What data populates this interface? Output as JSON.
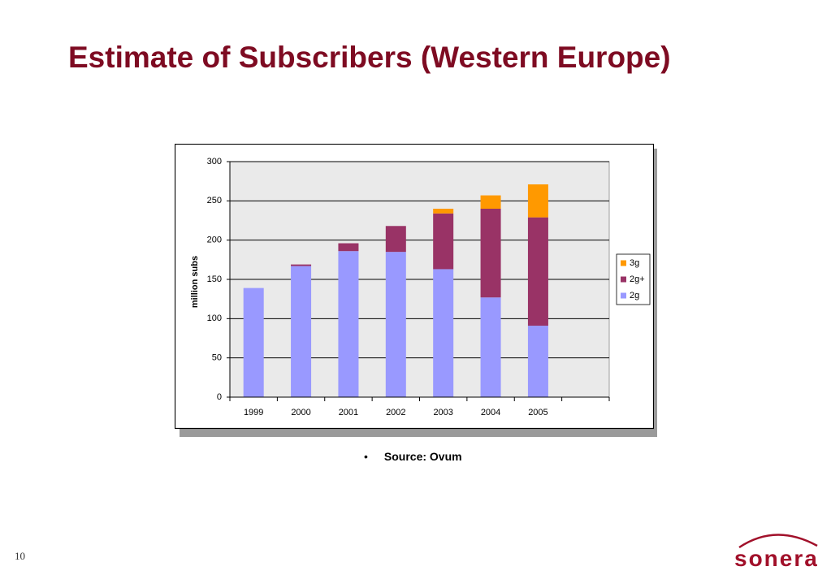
{
  "title": "Estimate of Subscribers (Western Europe)",
  "chart_data": {
    "type": "stacked_bar",
    "ylabel": "million subs",
    "categories": [
      "1999",
      "2000",
      "2001",
      "2002",
      "2003",
      "2004",
      "2005",
      null
    ],
    "series": [
      {
        "name": "2g",
        "color": "#9999ff",
        "values": [
          139,
          167,
          186,
          185,
          163,
          127,
          91,
          null
        ]
      },
      {
        "name": "2g+",
        "color": "#993366",
        "values": [
          0,
          2,
          10,
          33,
          71,
          113,
          138,
          null
        ]
      },
      {
        "name": "3g",
        "color": "#ff9900",
        "values": [
          0,
          0,
          0,
          0,
          6,
          17,
          42,
          null
        ]
      }
    ],
    "ylim": [
      0,
      300
    ],
    "yticks": [
      0,
      50,
      100,
      150,
      200,
      250,
      300
    ],
    "grid": true,
    "legend": "right"
  },
  "source": "Source: Ovum",
  "page_number": "10",
  "logo": "sonera"
}
